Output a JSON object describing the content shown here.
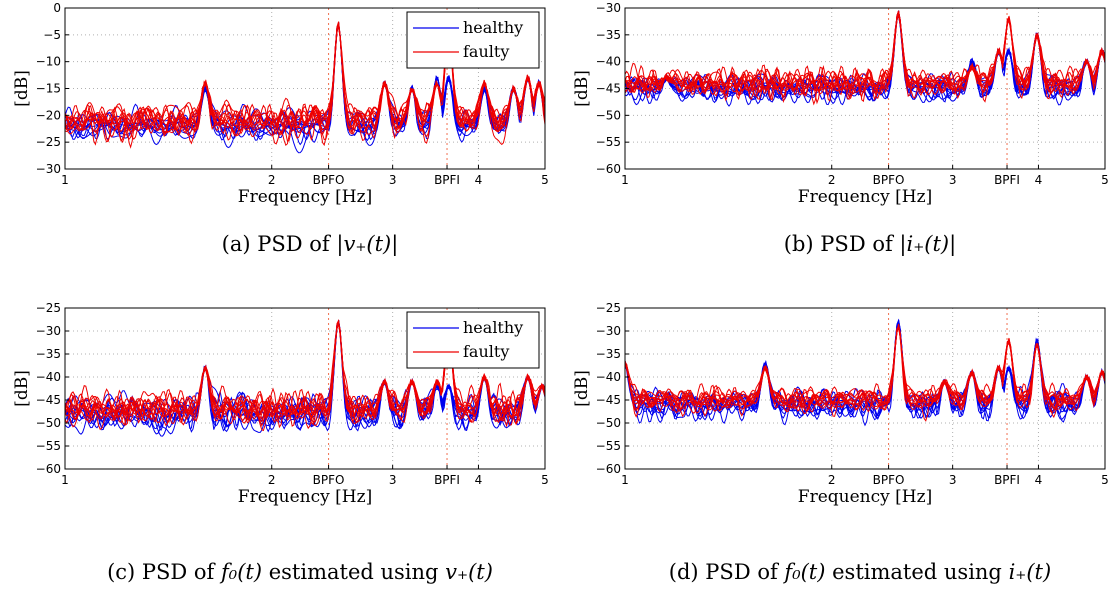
{
  "colors": {
    "healthy": "#0000ee",
    "faulty": "#ee0000",
    "grid": "#b0b0b0",
    "marker": "#f07050"
  },
  "captions": [
    {
      "pre": "(a) PSD of ",
      "math": "|v₊(t)|"
    },
    {
      "pre": "(b) PSD of ",
      "math": "|i₊(t)|"
    },
    {
      "pre": "(c) PSD of ",
      "math": "f₀(t)",
      "mid": " estimated using ",
      "math2": "v₊(t)"
    },
    {
      "pre": "(d) PSD of ",
      "math": "f₀(t)",
      "mid": " estimated using ",
      "math2": "i₊(t)"
    }
  ],
  "chart_data": [
    {
      "type": "line",
      "xlabel": "Frequency [Hz]",
      "ylabel": "[dB]",
      "xscale": "log",
      "xlim": [
        1,
        5
      ],
      "ylim": [
        -30,
        0
      ],
      "yticks": [
        0,
        -5,
        -10,
        -15,
        -20,
        -25,
        -30
      ],
      "xticks": [
        "1",
        "2",
        "BPFO",
        "3",
        "BPFI",
        "4",
        "5"
      ],
      "xtick_values": [
        1,
        2,
        2.42,
        3,
        3.6,
        4,
        5
      ],
      "markers": {
        "BPFO": 2.42,
        "BPFI": 3.6
      },
      "grid": true,
      "legend": {
        "position": "top-right",
        "entries": [
          "healthy",
          "faulty"
        ]
      },
      "baseline": {
        "healthy": -22,
        "faulty": -21
      },
      "peaks": [
        {
          "x": 1.6,
          "healthy": -15,
          "faulty": -14
        },
        {
          "x": 2.5,
          "healthy": -3,
          "faulty": -3
        },
        {
          "x": 2.92,
          "healthy": -14,
          "faulty": -14
        },
        {
          "x": 3.2,
          "healthy": -15,
          "faulty": -15
        },
        {
          "x": 3.48,
          "healthy": -13,
          "faulty": -14
        },
        {
          "x": 3.62,
          "healthy": -13,
          "faulty": -4
        },
        {
          "x": 4.08,
          "healthy": -15,
          "faulty": -14
        },
        {
          "x": 4.5,
          "healthy": -15,
          "faulty": -15
        },
        {
          "x": 4.72,
          "healthy": -13,
          "faulty": -13
        },
        {
          "x": 4.9,
          "healthy": -14,
          "faulty": -14
        }
      ],
      "noise": 2.5,
      "traces_per_class": 10
    },
    {
      "type": "line",
      "xlabel": "Frequency [Hz]",
      "ylabel": "[dB]",
      "xscale": "log",
      "xlim": [
        1,
        5
      ],
      "ylim": [
        -60,
        -30
      ],
      "yticks": [
        -30,
        -35,
        -40,
        -45,
        -50,
        -55,
        -60
      ],
      "xticks": [
        "1",
        "2",
        "BPFO",
        "3",
        "BPFI",
        "4",
        "5"
      ],
      "xtick_values": [
        1,
        2,
        2.42,
        3,
        3.6,
        4,
        5
      ],
      "markers": {
        "BPFO": 2.42,
        "BPFI": 3.6
      },
      "grid": true,
      "baseline": {
        "healthy": -45,
        "faulty": -44
      },
      "peaks": [
        {
          "x": 1.15,
          "healthy": -43,
          "faulty": -43
        },
        {
          "x": 2.5,
          "healthy": -31,
          "faulty": -31
        },
        {
          "x": 3.2,
          "healthy": -40,
          "faulty": -41
        },
        {
          "x": 3.5,
          "healthy": -38,
          "faulty": -38
        },
        {
          "x": 3.62,
          "healthy": -38,
          "faulty": -32
        },
        {
          "x": 3.98,
          "healthy": -35,
          "faulty": -35
        },
        {
          "x": 4.7,
          "healthy": -40,
          "faulty": -40
        },
        {
          "x": 4.95,
          "healthy": -38,
          "faulty": -38
        }
      ],
      "noise": 2.2,
      "traces_per_class": 10
    },
    {
      "type": "line",
      "xlabel": "Frequency [Hz]",
      "ylabel": "[dB]",
      "xscale": "log",
      "xlim": [
        1,
        5
      ],
      "ylim": [
        -60,
        -25
      ],
      "yticks": [
        -25,
        -30,
        -35,
        -40,
        -45,
        -50,
        -55,
        -60
      ],
      "xticks": [
        "1",
        "2",
        "BPFO",
        "3",
        "BPFI",
        "4",
        "5"
      ],
      "xtick_values": [
        1,
        2,
        2.42,
        3,
        3.6,
        4,
        5
      ],
      "markers": {
        "BPFO": 2.42,
        "BPFI": 3.6
      },
      "grid": true,
      "legend": {
        "position": "top-right",
        "entries": [
          "healthy",
          "faulty"
        ]
      },
      "baseline": {
        "healthy": -48,
        "faulty": -47
      },
      "peaks": [
        {
          "x": 1.6,
          "healthy": -38,
          "faulty": -38
        },
        {
          "x": 2.5,
          "healthy": -28,
          "faulty": -28
        },
        {
          "x": 2.92,
          "healthy": -41,
          "faulty": -41
        },
        {
          "x": 3.2,
          "healthy": -41,
          "faulty": -41
        },
        {
          "x": 3.48,
          "healthy": -42,
          "faulty": -41
        },
        {
          "x": 3.62,
          "healthy": -42,
          "faulty": -31
        },
        {
          "x": 4.08,
          "healthy": -40,
          "faulty": -40
        },
        {
          "x": 4.72,
          "healthy": -40,
          "faulty": -40
        },
        {
          "x": 4.95,
          "healthy": -42,
          "faulty": -42
        }
      ],
      "noise": 3.0,
      "traces_per_class": 10
    },
    {
      "type": "line",
      "xlabel": "Frequency [Hz]",
      "ylabel": "[dB]",
      "xscale": "log",
      "xlim": [
        1,
        5
      ],
      "ylim": [
        -60,
        -25
      ],
      "yticks": [
        -25,
        -30,
        -35,
        -40,
        -45,
        -50,
        -55,
        -60
      ],
      "xticks": [
        "1",
        "2",
        "BPFO",
        "3",
        "BPFI",
        "4",
        "5"
      ],
      "xtick_values": [
        1,
        2,
        2.42,
        3,
        3.6,
        4,
        5
      ],
      "markers": {
        "BPFO": 2.42,
        "BPFI": 3.6
      },
      "grid": true,
      "baseline": {
        "healthy": -46,
        "faulty": -45
      },
      "peaks": [
        {
          "x": 1.0,
          "healthy": -37,
          "faulty": -37
        },
        {
          "x": 1.6,
          "healthy": -37,
          "faulty": -38
        },
        {
          "x": 2.5,
          "healthy": -28,
          "faulty": -29
        },
        {
          "x": 2.92,
          "healthy": -41,
          "faulty": -41
        },
        {
          "x": 3.2,
          "healthy": -39,
          "faulty": -39
        },
        {
          "x": 3.5,
          "healthy": -38,
          "faulty": -38
        },
        {
          "x": 3.62,
          "healthy": -38,
          "faulty": -32
        },
        {
          "x": 3.98,
          "healthy": -32,
          "faulty": -33
        },
        {
          "x": 4.7,
          "healthy": -40,
          "faulty": -40
        },
        {
          "x": 4.95,
          "healthy": -39,
          "faulty": -39
        }
      ],
      "noise": 2.5,
      "traces_per_class": 10
    }
  ]
}
